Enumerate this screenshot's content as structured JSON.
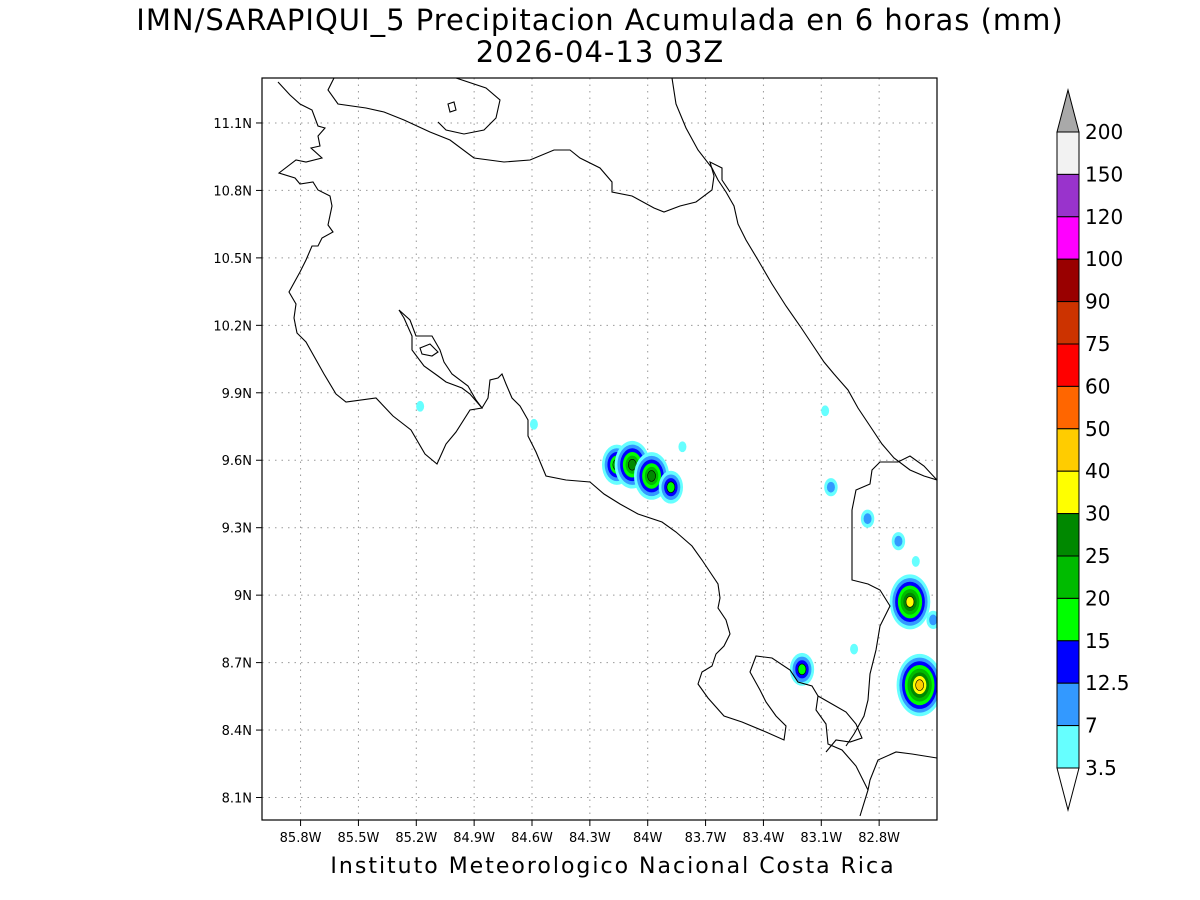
{
  "title": {
    "line1": "IMN/SARAPIQUI_5 Precipitacion Acumulada en 6 horas (mm)",
    "line2": "2026-04-13 03Z"
  },
  "footer": "Instituto Meteorologico Nacional Costa Rica",
  "map": {
    "lon_range": [
      -86.0,
      -82.5
    ],
    "lat_range": [
      8.0,
      11.3
    ],
    "lat_ticks": [
      {
        "value": 11.1,
        "label": "11.1N"
      },
      {
        "value": 10.8,
        "label": "10.8N"
      },
      {
        "value": 10.5,
        "label": "10.5N"
      },
      {
        "value": 10.2,
        "label": "10.2N"
      },
      {
        "value": 9.9,
        "label": "9.9N"
      },
      {
        "value": 9.6,
        "label": "9.6N"
      },
      {
        "value": 9.3,
        "label": "9.3N"
      },
      {
        "value": 9.0,
        "label": "9N"
      },
      {
        "value": 8.7,
        "label": "8.7N"
      },
      {
        "value": 8.4,
        "label": "8.4N"
      },
      {
        "value": 8.1,
        "label": "8.1N"
      }
    ],
    "lon_ticks": [
      {
        "value": -85.8,
        "label": "85.8W"
      },
      {
        "value": -85.5,
        "label": "85.5W"
      },
      {
        "value": -85.2,
        "label": "85.2W"
      },
      {
        "value": -84.9,
        "label": "84.9W"
      },
      {
        "value": -84.6,
        "label": "84.6W"
      },
      {
        "value": -84.3,
        "label": "84.3W"
      },
      {
        "value": -84.0,
        "label": "84W"
      },
      {
        "value": -83.7,
        "label": "83.7W"
      },
      {
        "value": -83.4,
        "label": "83.4W"
      },
      {
        "value": -83.1,
        "label": "83.1W"
      },
      {
        "value": -82.8,
        "label": "82.8W"
      }
    ],
    "grid": "dotted"
  },
  "colorbar": {
    "levels": [
      {
        "label": "200",
        "color": "#f2f2f2"
      },
      {
        "label": "150",
        "color": "#9933cc"
      },
      {
        "label": "120",
        "color": "#ff00ff"
      },
      {
        "label": "100",
        "color": "#990000"
      },
      {
        "label": "90",
        "color": "#cc3300"
      },
      {
        "label": "75",
        "color": "#ff0000"
      },
      {
        "label": "60",
        "color": "#ff6600"
      },
      {
        "label": "50",
        "color": "#ffcc00"
      },
      {
        "label": "40",
        "color": "#ffff00"
      },
      {
        "label": "30",
        "color": "#008800"
      },
      {
        "label": "25",
        "color": "#00bb00"
      },
      {
        "label": "20",
        "color": "#00ff00"
      },
      {
        "label": "15",
        "color": "#0000ff"
      },
      {
        "label": "12.5",
        "color": "#3399ff"
      },
      {
        "label": "7",
        "color": "#66ffff"
      },
      {
        "label": "3.5",
        "color": "#ffffff"
      }
    ],
    "over_color": "#a9a9a9",
    "under_color": "#ffffff"
  },
  "precip_cells": [
    {
      "lon": -85.18,
      "lat": 9.84,
      "value": 3.5
    },
    {
      "lon": -84.59,
      "lat": 9.76,
      "value": 3.5
    },
    {
      "lon": -83.82,
      "lat": 9.66,
      "value": 3.5
    },
    {
      "lon": -84.16,
      "lat": 9.58,
      "value": 20
    },
    {
      "lon": -84.08,
      "lat": 9.58,
      "value": 25
    },
    {
      "lon": -83.98,
      "lat": 9.53,
      "value": 25
    },
    {
      "lon": -83.88,
      "lat": 9.48,
      "value": 15
    },
    {
      "lon": -83.08,
      "lat": 9.82,
      "value": 3.5
    },
    {
      "lon": -83.05,
      "lat": 9.48,
      "value": 7
    },
    {
      "lon": -82.86,
      "lat": 9.34,
      "value": 7
    },
    {
      "lon": -82.7,
      "lat": 9.24,
      "value": 7
    },
    {
      "lon": -82.61,
      "lat": 9.15,
      "value": 3.5
    },
    {
      "lon": -82.64,
      "lat": 8.97,
      "value": 30
    },
    {
      "lon": -82.52,
      "lat": 8.89,
      "value": 7
    },
    {
      "lon": -83.2,
      "lat": 8.67,
      "value": 15
    },
    {
      "lon": -82.59,
      "lat": 8.6,
      "value": 40
    },
    {
      "lon": -82.93,
      "lat": 8.76,
      "value": 3.5
    }
  ]
}
